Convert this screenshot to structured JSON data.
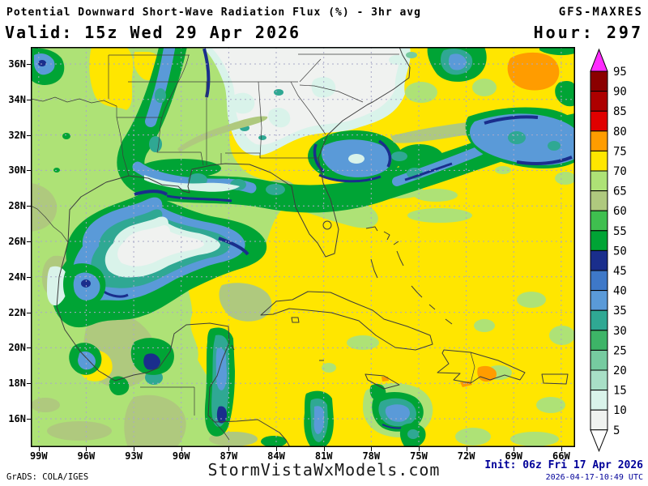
{
  "header": {
    "title": "Potential Downward Short-Wave Radiation Flux (%) - 3hr avg",
    "model": "GFS-MAXRES",
    "valid": "Valid: 15z Wed 29 Apr 2026",
    "hour": "Hour: 297"
  },
  "footer": {
    "grads_credit": "GrADS: COLA/IGES",
    "site": "StormVistaWxModels.com",
    "init": "Init: 06z Fri 17 Apr 2026",
    "generated": "2026-04-17-10:49 UTC"
  },
  "axes": {
    "lat_labels": [
      "36N",
      "34N",
      "32N",
      "30N",
      "28N",
      "26N",
      "24N",
      "22N",
      "20N",
      "18N",
      "16N"
    ],
    "lon_labels": [
      "99W",
      "96W",
      "93W",
      "90W",
      "87W",
      "84W",
      "81W",
      "78W",
      "75W",
      "72W",
      "69W",
      "66W"
    ]
  },
  "colorbar": {
    "unit": "%",
    "labels": [
      "95",
      "90",
      "85",
      "80",
      "75",
      "70",
      "65",
      "60",
      "55",
      "50",
      "45",
      "40",
      "35",
      "30",
      "25",
      "20",
      "15",
      "10",
      "5"
    ],
    "cell_colors_top_to_bottom": [
      "#8b0000",
      "#ad0000",
      "#e00000",
      "#ff9c00",
      "#ffe600",
      "#aee276",
      "#afc97e",
      "#3fbf4f",
      "#00a435",
      "#1a2e8c",
      "#3e78c8",
      "#5a9ad8",
      "#2fa893",
      "#3db467",
      "#76cba0",
      "#a8dfc6",
      "#d9f3ea",
      "#f0f2f0"
    ],
    "over_arrow_color": "#ff2bff",
    "under_arrow_color": "#ffffff"
  },
  "map_meta": {
    "lat_range_shown": "16N to 36N",
    "lon_range_shown": "99W to 66W",
    "dominant_value_color": "#ffe600",
    "grid_color": "#a9a9c9"
  }
}
